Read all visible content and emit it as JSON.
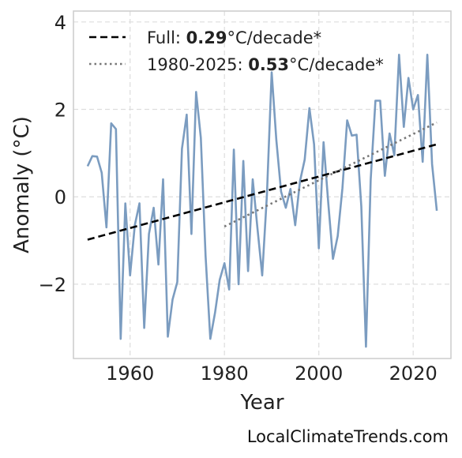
{
  "chart_data": {
    "type": "line",
    "xlabel": "Year",
    "ylabel": "Anomaly (°C)",
    "xlim": [
      1948,
      2028
    ],
    "ylim": [
      -3.7,
      4.25
    ],
    "xticks": [
      1960,
      1980,
      2000,
      2020
    ],
    "yticks": [
      4,
      2,
      0,
      -2
    ],
    "ytick_labels": [
      "4",
      "2",
      "0",
      "−2"
    ],
    "grid": true,
    "legend_position": "top-left",
    "series": [
      {
        "color": "#7b9cc0",
        "x": [
          1951,
          1952,
          1953,
          1954,
          1955,
          1956,
          1957,
          1958,
          1959,
          1960,
          1961,
          1962,
          1963,
          1964,
          1965,
          1966,
          1967,
          1968,
          1969,
          1970,
          1971,
          1972,
          1973,
          1974,
          1975,
          1976,
          1977,
          1978,
          1979,
          1980,
          1981,
          1982,
          1983,
          1984,
          1985,
          1986,
          1987,
          1988,
          1989,
          1990,
          1991,
          1992,
          1993,
          1994,
          1995,
          1996,
          1997,
          1998,
          1999,
          2000,
          2001,
          2002,
          2003,
          2004,
          2005,
          2006,
          2007,
          2008,
          2009,
          2010,
          2011,
          2012,
          2013,
          2014,
          2015,
          2016,
          2017,
          2018,
          2019,
          2020,
          2021,
          2022,
          2023,
          2024,
          2025
        ],
        "values": [
          0.7,
          0.93,
          0.92,
          0.55,
          -0.7,
          1.68,
          1.55,
          -3.25,
          -0.15,
          -1.8,
          -0.65,
          -0.15,
          -3.0,
          -0.85,
          -0.25,
          -1.55,
          0.4,
          -3.2,
          -2.35,
          -1.95,
          1.1,
          1.88,
          -0.85,
          2.4,
          1.35,
          -1.35,
          -3.25,
          -2.65,
          -1.9,
          -1.52,
          -2.12,
          1.08,
          -2.0,
          0.82,
          -1.7,
          0.4,
          -0.72,
          -1.8,
          0.05,
          2.85,
          1.3,
          0.12,
          -0.25,
          0.18,
          -0.65,
          0.35,
          0.85,
          2.03,
          1.2,
          -1.18,
          1.25,
          -0.15,
          -1.42,
          -0.9,
          0.2,
          1.75,
          1.4,
          1.42,
          -0.22,
          -3.43,
          0.4,
          2.2,
          2.2,
          0.48,
          1.45,
          0.95,
          3.25,
          1.6,
          2.72,
          2.0,
          2.33,
          0.8,
          3.25,
          0.75,
          -0.32
        ]
      }
    ],
    "trends": [
      {
        "label_prefix": "Full: ",
        "rate": "0.29",
        "label_suffix": "°C/decade*",
        "style": "dashed",
        "color": "#000000",
        "x0": 1951,
        "y0": -0.98,
        "x1": 2025,
        "y1": 1.2
      },
      {
        "label_prefix": "1980-2025: ",
        "rate": "0.53",
        "label_suffix": "°C/decade*",
        "style": "dotted",
        "color": "#777777",
        "x0": 1980,
        "y0": -0.68,
        "x1": 2025,
        "y1": 1.7
      }
    ]
  },
  "source": "LocalClimateTrends.com"
}
